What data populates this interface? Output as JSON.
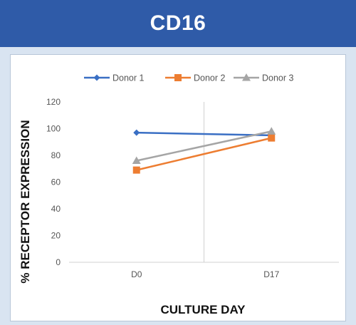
{
  "header": {
    "title": "CD16"
  },
  "chart_data": {
    "type": "line",
    "title": "",
    "xlabel": "CULTURE DAY",
    "ylabel": "% RECEPTOR EXPRESSION",
    "categories": [
      "D0",
      "D17"
    ],
    "ylim": [
      0,
      120
    ],
    "yticks": [
      0,
      20,
      40,
      60,
      80,
      100,
      120
    ],
    "grid": false,
    "legend_position": "top",
    "series": [
      {
        "name": "Donor 1",
        "values": [
          97,
          95
        ],
        "color": "#3a6fc4",
        "marker": "diamond"
      },
      {
        "name": "Donor 2",
        "values": [
          69,
          93
        ],
        "color": "#ed7d31",
        "marker": "square"
      },
      {
        "name": "Donor 3",
        "values": [
          76,
          98
        ],
        "color": "#a5a5a5",
        "marker": "triangle"
      }
    ]
  }
}
